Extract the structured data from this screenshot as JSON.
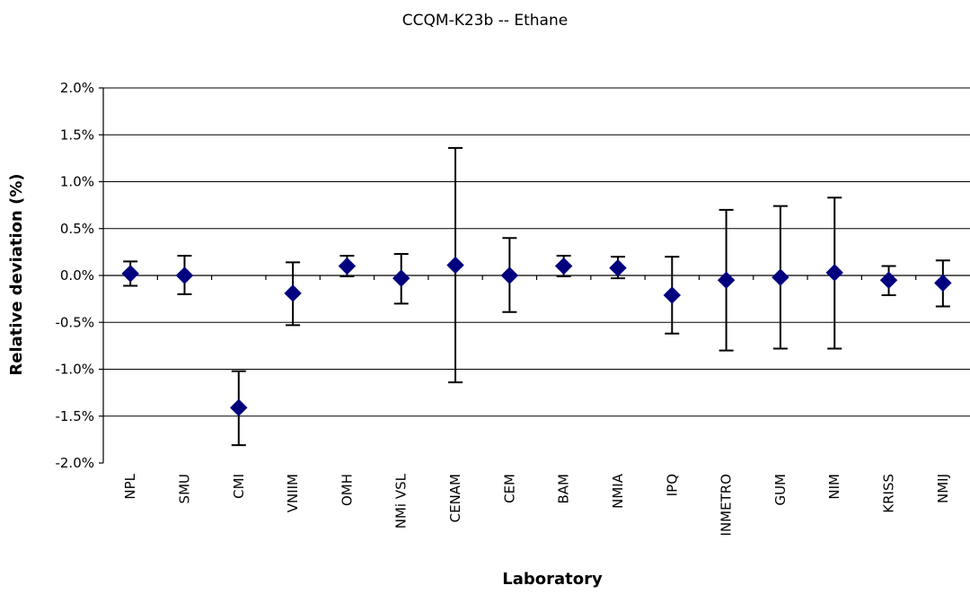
{
  "chart_data": {
    "type": "scatter",
    "title": "CCQM-K23b -- Ethane",
    "xlabel": "Laboratory",
    "ylabel": "Relative deviation (%)",
    "ylim": [
      -2.0,
      2.0
    ],
    "yticks": [
      2.0,
      1.5,
      1.0,
      0.5,
      0.0,
      -0.5,
      -1.0,
      -1.5,
      -2.0
    ],
    "ytick_labels": [
      "2.0%",
      "1.5%",
      "1.0%",
      "0.5%",
      "0.0%",
      "-0.5%",
      "-1.0%",
      "-1.5%",
      "-2.0%"
    ],
    "grid": true,
    "marker_color": "#00007f",
    "categories": [
      "NPL",
      "SMU",
      "CMI",
      "VNIIM",
      "OMH",
      "NMi VSL",
      "CENAM",
      "CEM",
      "BAM",
      "NMIA",
      "IPQ",
      "INMETRO",
      "GUM",
      "NIM",
      "KRISS",
      "NMIJ"
    ],
    "values": [
      0.02,
      0.0,
      -1.41,
      -0.19,
      0.1,
      -0.03,
      0.11,
      0.0,
      0.1,
      0.08,
      -0.21,
      -0.05,
      -0.02,
      0.03,
      -0.05,
      -0.08
    ],
    "error_low": [
      -0.11,
      -0.2,
      -1.81,
      -0.53,
      -0.01,
      -0.3,
      -1.14,
      -0.39,
      -0.01,
      -0.03,
      -0.62,
      -0.8,
      -0.78,
      -0.78,
      -0.21,
      -0.33
    ],
    "error_high": [
      0.15,
      0.21,
      -1.02,
      0.14,
      0.21,
      0.23,
      1.36,
      0.4,
      0.21,
      0.2,
      0.2,
      0.7,
      0.74,
      0.83,
      0.1,
      0.16
    ]
  }
}
